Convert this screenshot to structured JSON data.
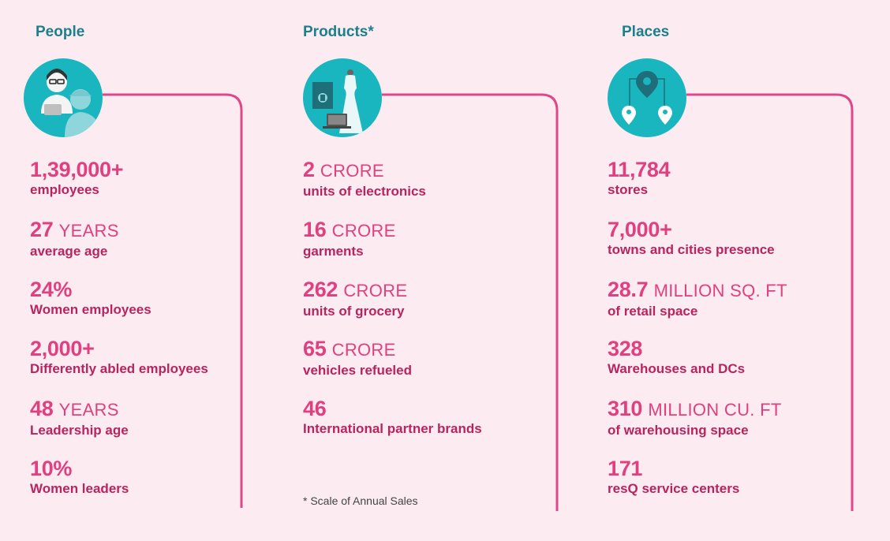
{
  "columns": [
    {
      "title": "People",
      "icon": "people-icon",
      "stats": [
        {
          "value": "1,39,000+",
          "unit": "",
          "label": "employees"
        },
        {
          "value": "27",
          "unit": "YEARS",
          "label": "average age"
        },
        {
          "value": "24%",
          "unit": "",
          "label": "Women employees"
        },
        {
          "value": "2,000+",
          "unit": "",
          "label": "Differently abled employees"
        },
        {
          "value": "48",
          "unit": "YEARS",
          "label": "Leadership age"
        },
        {
          "value": "10%",
          "unit": "",
          "label": "Women leaders"
        }
      ]
    },
    {
      "title": "Products*",
      "icon": "products-icon",
      "stats": [
        {
          "value": "2",
          "unit": "CRORE",
          "label": "units of electronics"
        },
        {
          "value": "16",
          "unit": "CRORE",
          "label": "garments"
        },
        {
          "value": "262",
          "unit": "CRORE",
          "label": "units of grocery"
        },
        {
          "value": "65",
          "unit": "CRORE",
          "label": "vehicles refueled"
        },
        {
          "value": "46",
          "unit": "",
          "label": "International partner brands"
        }
      ],
      "footnote": "* Scale of Annual Sales"
    },
    {
      "title": "Places",
      "icon": "location-pins-icon",
      "stats": [
        {
          "value": "11,784",
          "unit": "",
          "label": "stores"
        },
        {
          "value": "7,000+",
          "unit": "",
          "label": "towns and cities presence"
        },
        {
          "value": "28.7",
          "unit": "MILLION SQ. FT",
          "label": "of retail space"
        },
        {
          "value": "328",
          "unit": "",
          "label": "Warehouses and DCs"
        },
        {
          "value": "310",
          "unit": "MILLION CU. FT",
          "label": "of warehousing space"
        },
        {
          "value": "171",
          "unit": "",
          "label": "resQ service centers"
        }
      ]
    }
  ],
  "colors": {
    "background": "#fcecf1",
    "title": "#1c7f8c",
    "value": "#e0407f",
    "label": "#b8245f",
    "line": "#e0478a",
    "icon_circle": "#19b6c0"
  }
}
